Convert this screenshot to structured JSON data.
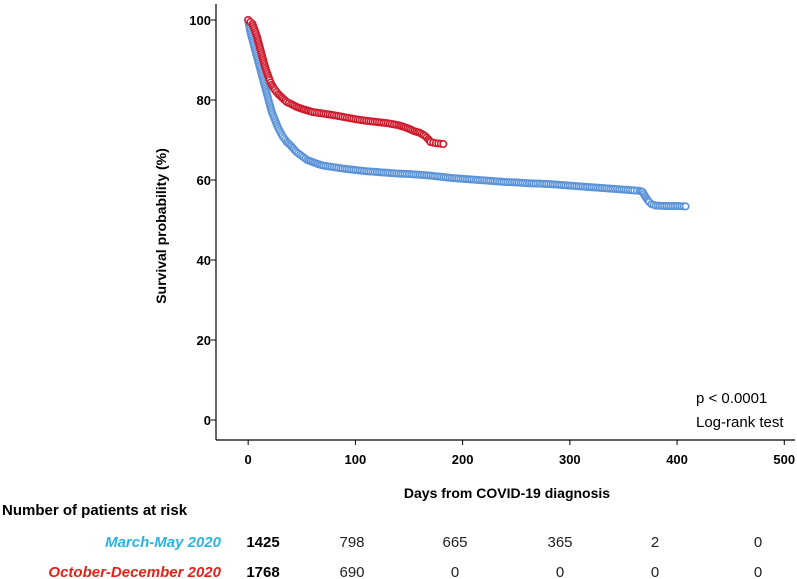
{
  "chart_data": {
    "type": "line",
    "title": "",
    "xlabel": "Days from COVID-19 diagnosis",
    "ylabel": "Survival probability (%)",
    "xlim": [
      -30,
      510
    ],
    "ylim": [
      -5,
      104
    ],
    "xticks": [
      0,
      100,
      200,
      300,
      400,
      500
    ],
    "yticks": [
      0,
      20,
      40,
      60,
      80,
      100
    ],
    "grid": false,
    "series": [
      {
        "name": "March-May 2020",
        "color": "#5b93d8",
        "points": [
          [
            0,
            100
          ],
          [
            2,
            97
          ],
          [
            4,
            95
          ],
          [
            6,
            93
          ],
          [
            8,
            91
          ],
          [
            10,
            89
          ],
          [
            12,
            87
          ],
          [
            14,
            85
          ],
          [
            16,
            83
          ],
          [
            18,
            81
          ],
          [
            20,
            79
          ],
          [
            22,
            77
          ],
          [
            25,
            75
          ],
          [
            28,
            73
          ],
          [
            32,
            71
          ],
          [
            36,
            69.5
          ],
          [
            40,
            68.5
          ],
          [
            45,
            67
          ],
          [
            50,
            66
          ],
          [
            55,
            65
          ],
          [
            60,
            64.5
          ],
          [
            65,
            64
          ],
          [
            70,
            63.6
          ],
          [
            80,
            63.2
          ],
          [
            90,
            62.8
          ],
          [
            100,
            62.5
          ],
          [
            110,
            62.2
          ],
          [
            120,
            62
          ],
          [
            130,
            61.8
          ],
          [
            140,
            61.6
          ],
          [
            150,
            61.5
          ],
          [
            160,
            61.3
          ],
          [
            170,
            61.1
          ],
          [
            180,
            60.8
          ],
          [
            190,
            60.5
          ],
          [
            200,
            60.3
          ],
          [
            210,
            60.1
          ],
          [
            220,
            59.9
          ],
          [
            230,
            59.7
          ],
          [
            240,
            59.5
          ],
          [
            250,
            59.4
          ],
          [
            260,
            59.2
          ],
          [
            270,
            59.1
          ],
          [
            280,
            59
          ],
          [
            290,
            58.8
          ],
          [
            300,
            58.6
          ],
          [
            310,
            58.4
          ],
          [
            320,
            58.2
          ],
          [
            330,
            58
          ],
          [
            340,
            57.8
          ],
          [
            350,
            57.6
          ],
          [
            360,
            57.4
          ],
          [
            365,
            57.3
          ],
          [
            368,
            57
          ],
          [
            370,
            56
          ],
          [
            372,
            55.2
          ],
          [
            374,
            54.5
          ],
          [
            376,
            54
          ],
          [
            380,
            53.6
          ],
          [
            390,
            53.5
          ],
          [
            400,
            53.5
          ],
          [
            408,
            53.4
          ]
        ]
      },
      {
        "name": "October-December 2020",
        "color": "#cf1b2e",
        "points": [
          [
            0,
            100
          ],
          [
            2,
            99.5
          ],
          [
            4,
            99
          ],
          [
            6,
            97.5
          ],
          [
            8,
            96
          ],
          [
            10,
            94
          ],
          [
            12,
            92
          ],
          [
            14,
            90
          ],
          [
            16,
            88
          ],
          [
            18,
            86.5
          ],
          [
            20,
            85
          ],
          [
            22,
            83.8
          ],
          [
            25,
            82.5
          ],
          [
            28,
            81.5
          ],
          [
            32,
            80.5
          ],
          [
            36,
            79.5
          ],
          [
            40,
            79
          ],
          [
            45,
            78.3
          ],
          [
            50,
            77.8
          ],
          [
            55,
            77.4
          ],
          [
            60,
            77
          ],
          [
            70,
            76.6
          ],
          [
            80,
            76.2
          ],
          [
            90,
            75.7
          ],
          [
            100,
            75.2
          ],
          [
            110,
            74.8
          ],
          [
            120,
            74.5
          ],
          [
            130,
            74.2
          ],
          [
            140,
            73.7
          ],
          [
            145,
            73.3
          ],
          [
            150,
            72.8
          ],
          [
            155,
            72.2
          ],
          [
            160,
            71.8
          ],
          [
            165,
            71
          ],
          [
            168,
            70.2
          ],
          [
            170,
            69.5
          ],
          [
            175,
            69.2
          ],
          [
            182,
            69
          ]
        ]
      }
    ],
    "annotations": [
      "p < 0.0001",
      "Log-rank test"
    ],
    "risk_table": {
      "title": "Number of patients at risk",
      "rows": [
        {
          "label": "March-May 2020",
          "color": "#27b5e8",
          "values": [
            "1425",
            "798",
            "665",
            "365",
            "2",
            "0"
          ]
        },
        {
          "label": "October-December 2020",
          "color": "#e2231a",
          "values": [
            "1768",
            "690",
            "0",
            "0",
            "0",
            "0"
          ]
        }
      ]
    }
  }
}
